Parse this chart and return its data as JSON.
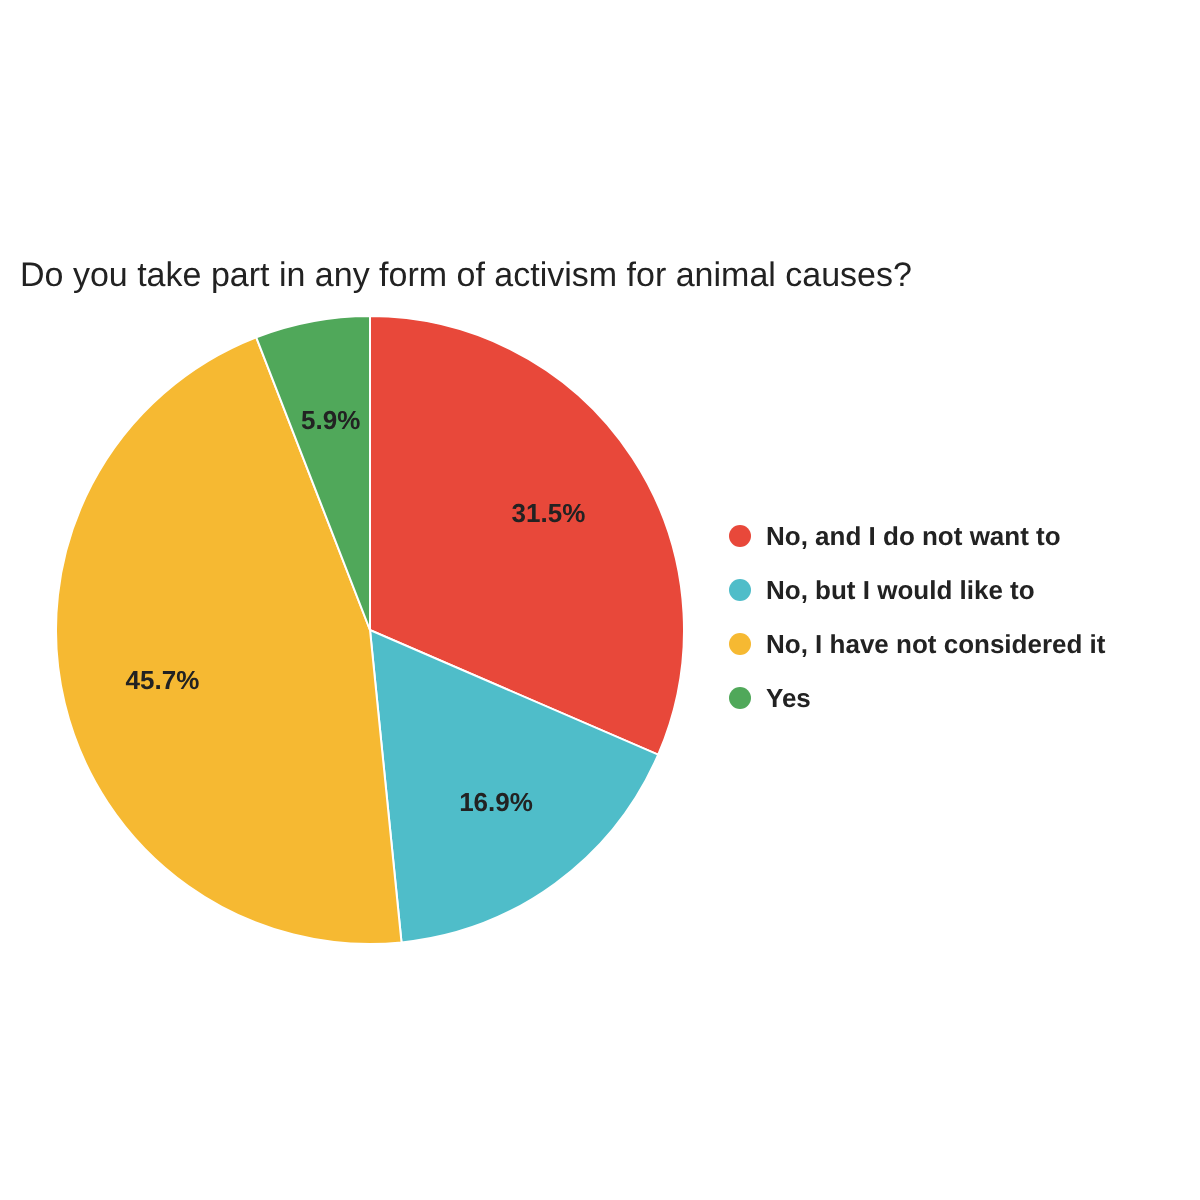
{
  "chart_data": {
    "type": "pie",
    "title": "Do you take part in any form of activism for animal causes?",
    "categories": [
      "No, and I do not want to",
      "No, but I would like to",
      "No, I have not considered it",
      "Yes"
    ],
    "values": [
      31.5,
      16.9,
      45.7,
      5.9
    ],
    "colors": [
      "#e8483a",
      "#4fbdc9",
      "#f6b932",
      "#50a85a"
    ],
    "value_labels": [
      "31.5%",
      "16.9%",
      "45.7%",
      "5.9%"
    ],
    "legend": "right"
  }
}
